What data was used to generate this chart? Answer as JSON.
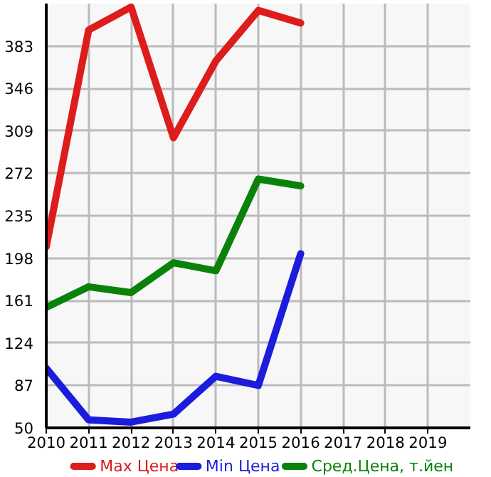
{
  "chart_data": {
    "type": "line",
    "x": [
      2010,
      2011,
      2012,
      2013,
      2014,
      2015,
      2016
    ],
    "series": [
      {
        "name": "Max Цена",
        "color": "#dd1c1c",
        "values": [
          208,
          397,
          417,
          303,
          370,
          414,
          403
        ]
      },
      {
        "name": "Min Цена",
        "color": "#1c1cdd",
        "values": [
          102,
          57,
          55,
          62,
          95,
          87,
          202
        ]
      },
      {
        "name": "Сред.Цена, т.йен",
        "color": "#0a820a",
        "values": [
          155,
          173,
          168,
          194,
          187,
          267,
          261
        ]
      }
    ],
    "xlim": [
      2010,
      2020
    ],
    "xticks": [
      2010,
      2011,
      2012,
      2013,
      2014,
      2015,
      2016,
      2017,
      2018,
      2019
    ],
    "ylim": [
      50,
      420
    ],
    "yticks": [
      50,
      87,
      124,
      161,
      198,
      235,
      272,
      309,
      346,
      383
    ],
    "grid": true,
    "legend": "bottom",
    "marker": "none",
    "line_style": "solid"
  }
}
